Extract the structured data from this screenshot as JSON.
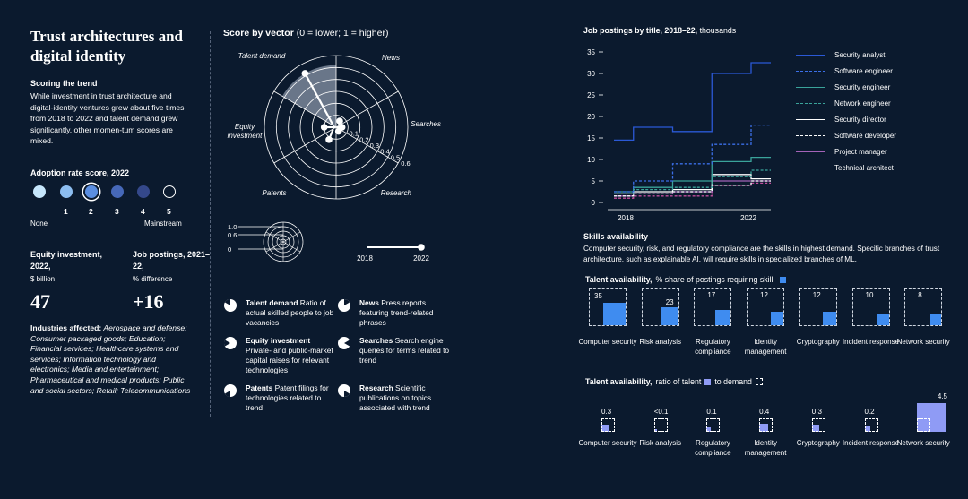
{
  "title": "Trust architectures and digital identity",
  "scoring": {
    "heading": "Scoring the trend",
    "text": "While investment in trust architecture and digital-identity ventures grew about five times from 2018 to 2022 and talent demand grew significantly, other momen-tum scores are mixed."
  },
  "adoption": {
    "heading": "Adoption rate score, 2022",
    "levels": [
      "1",
      "2",
      "3",
      "4",
      "5"
    ],
    "selected": "2",
    "none_label": "None",
    "mainstream_label": "Mainstream",
    "colors": [
      "#c6e6fb",
      "#8cbdf0",
      "#5b8ee0",
      "#4668b8",
      "#34488a",
      "#0b1a2e"
    ]
  },
  "equity": {
    "label": "Equity investment, 2022,",
    "unit": "$ billion",
    "value": "47"
  },
  "jobs": {
    "label": "Job postings, 2021–22,",
    "unit": "% difference",
    "value": "+16"
  },
  "industries": {
    "label": "Industries affected:",
    "text": "Aerospace and defense; Consumer packaged goods; Education; Financial services; Healthcare systems and services; Information technology and electronics; Media and entertainment; Pharmaceutical and medical products; Public and social sectors; Retail; Telecommunications"
  },
  "radar": {
    "title_bold": "Score by vector",
    "title_rest": "(0 = lower; 1 = higher)",
    "axes": [
      "Talent demand",
      "News",
      "Searches",
      "Research",
      "Patents",
      "Equity investment"
    ],
    "rings": [
      "0.1",
      "0.2",
      "0.3",
      "0.4",
      "0.5",
      "0.6"
    ],
    "scale_labels": [
      "1.0",
      "0.6",
      "0"
    ],
    "timeline_start": "2018",
    "timeline_end": "2022",
    "colors": {
      "line": "#ffffff",
      "grid": "#ffffff",
      "fill": "#8a96a8"
    }
  },
  "legend": [
    {
      "name": "Talent demand",
      "desc": "Ratio of actual skilled people to job vacancies"
    },
    {
      "name": "News",
      "desc": "Press reports featuring trend-related phrases"
    },
    {
      "name": "Equity investment",
      "desc": "Private- and public-market capital raises for relevant technologies"
    },
    {
      "name": "Searches",
      "desc": "Search engine queries for terms related to trend"
    },
    {
      "name": "Patents",
      "desc": "Patent filings for technologies related to trend"
    },
    {
      "name": "Research",
      "desc": "Scientific publications on topics associated with trend"
    }
  ],
  "chart_data": [
    {
      "type": "radar",
      "title": "Score by vector (0 = lower; 1 = higher)",
      "axes": [
        "Talent demand",
        "News",
        "Searches",
        "Research",
        "Patents",
        "Equity investment"
      ],
      "start_2018": [
        0.03,
        0.02,
        0.02,
        0.02,
        0.02,
        0.02
      ],
      "end_2022": [
        0.52,
        0.06,
        0.05,
        0.04,
        0.12,
        0.1
      ],
      "rlim": [
        0,
        0.6
      ]
    },
    {
      "type": "line",
      "title": "Job postings by title, 2018–22, thousands",
      "title_bold": "Job postings by title, 2018–22,",
      "title_rest": "thousands",
      "x": [
        2018,
        2019,
        2020,
        2021,
        2022
      ],
      "x_tick_labels": [
        "2018",
        "2022"
      ],
      "ylim": [
        0,
        35
      ],
      "y_ticks": [
        "0",
        "5",
        "10",
        "15",
        "20",
        "25",
        "30",
        "35"
      ],
      "series": [
        {
          "name": "Security analyst",
          "values": [
            14.5,
            17.5,
            16.5,
            30,
            32.5
          ],
          "color": "#2b59d6",
          "dash": ""
        },
        {
          "name": "Software engineer",
          "values": [
            2.5,
            5,
            9,
            13.5,
            18
          ],
          "color": "#3b6fe8",
          "dash": "3,2"
        },
        {
          "name": "Security engineer",
          "values": [
            2.5,
            3.5,
            5,
            9.5,
            10.5
          ],
          "color": "#3aa39a",
          "dash": ""
        },
        {
          "name": "Network engineer",
          "values": [
            2,
            3,
            3.5,
            6,
            7.5
          ],
          "color": "#3aa39a",
          "dash": "3,2"
        },
        {
          "name": "Security director",
          "values": [
            2,
            2.5,
            3,
            6.5,
            5.5
          ],
          "color": "#ffffff",
          "dash": ""
        },
        {
          "name": "Software developer",
          "values": [
            1.5,
            2,
            2.5,
            4,
            5
          ],
          "color": "#ffffff",
          "dash": "3,2"
        },
        {
          "name": "Project manager",
          "values": [
            1.5,
            2,
            2.5,
            5,
            5
          ],
          "color": "#a463b8",
          "dash": ""
        },
        {
          "name": "Technical architect",
          "values": [
            1,
            1.5,
            1.5,
            4,
            4.5
          ],
          "color": "#c24f9e",
          "dash": "3,2"
        }
      ]
    },
    {
      "type": "bar",
      "title": "Talent availability, % share of postings requiring skill",
      "title_bold": "Talent availability,",
      "title_rest": "% share of postings requiring skill",
      "categories": [
        "Computer security",
        "Risk analysis",
        "Regulatory compliance",
        "Identity management",
        "Cryptography",
        "Incident response",
        "Network security"
      ],
      "values": [
        35,
        23,
        17,
        12,
        12,
        10,
        8
      ],
      "ylim": [
        0,
        100
      ],
      "color": "#3f8cf0"
    },
    {
      "type": "bar",
      "title": "Talent availability, ratio of talent to demand",
      "title_bold": "Talent availability,",
      "title_rest1": "ratio of talent",
      "title_rest2": "to demand",
      "categories": [
        "Computer security",
        "Risk analysis",
        "Regulatory compliance",
        "Identity management",
        "Cryptography",
        "Incident response",
        "Network security"
      ],
      "labels": [
        "0.3",
        "<0.1",
        "0.1",
        "0.4",
        "0.3",
        "0.2",
        "4.5"
      ],
      "values": [
        0.3,
        0.05,
        0.1,
        0.4,
        0.3,
        0.2,
        4.5
      ],
      "color": "#8f9bf5"
    }
  ],
  "skills": {
    "heading": "Skills availability",
    "text": "Computer security, risk, and regulatory compliance are the skills in highest demand. Specific branches of trust architecture, such as explainable AI, will require skills in specialized branches of ML."
  }
}
